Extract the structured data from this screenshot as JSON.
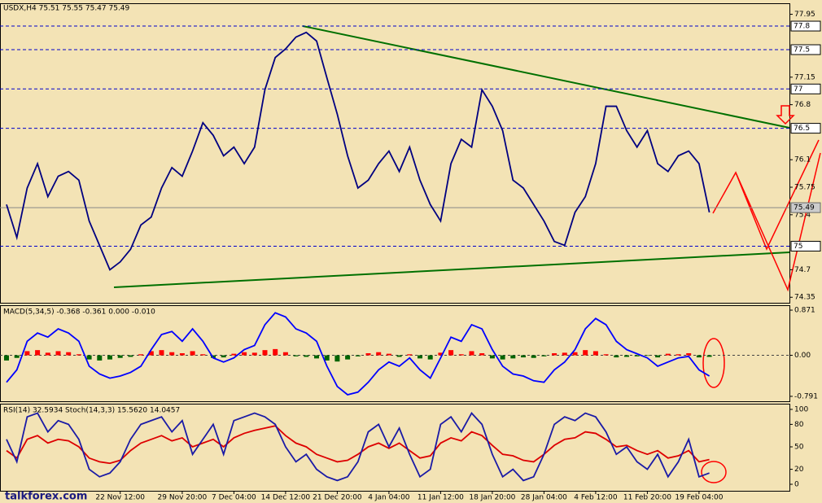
{
  "chart_data": [
    {
      "type": "line",
      "title": "USDX,H4  75.51 75.55 75.47 75.49",
      "lines": [
        {
          "color": "#000080",
          "values": [
            75.53,
            75.11,
            75.74,
            76.05,
            75.63,
            75.89,
            75.95,
            75.84,
            75.32,
            75.01,
            74.7,
            74.8,
            74.96,
            75.27,
            75.37,
            75.74,
            76.0,
            75.89,
            76.21,
            76.57,
            76.41,
            76.15,
            76.26,
            76.05,
            76.26,
            76.99,
            77.4,
            77.51,
            77.66,
            77.72,
            77.61,
            77.14,
            76.68,
            76.15,
            75.74,
            75.84,
            76.05,
            76.21,
            75.95,
            76.26,
            75.84,
            75.53,
            75.32,
            76.05,
            76.36,
            76.26,
            76.99,
            76.78,
            76.47,
            75.84,
            75.74,
            75.53,
            75.32,
            75.06,
            75.01,
            75.43,
            75.63,
            76.05,
            76.78,
            76.78,
            76.47,
            76.26,
            76.47,
            76.05,
            75.95,
            76.15,
            76.21,
            76.05,
            75.43
          ]
        }
      ],
      "ylim": [
        74.28,
        78.08
      ],
      "yticks": [
        77.95,
        77.15,
        76.8,
        76.1,
        75.75,
        75.4,
        74.7,
        74.35
      ],
      "levels": [
        77.8,
        77.5,
        77.0,
        76.5,
        75.0
      ],
      "level_color": "#0000cc",
      "last": 75.49
    },
    {
      "type": "bar",
      "title": "MACD(5,34,5) -0.368 -0.361 0.000 -0.010",
      "values": [
        -0.1,
        -0.05,
        0.08,
        0.1,
        0.05,
        0.08,
        0.06,
        0.02,
        -0.08,
        -0.1,
        -0.08,
        -0.05,
        -0.03,
        0.02,
        0.08,
        0.1,
        0.06,
        0.04,
        0.08,
        0.02,
        -0.05,
        -0.04,
        0.03,
        0.06,
        0.05,
        0.1,
        0.12,
        0.06,
        -0.02,
        -0.03,
        -0.06,
        -0.1,
        -0.12,
        -0.08,
        -0.02,
        0.04,
        0.06,
        0.03,
        -0.03,
        0.02,
        -0.06,
        -0.08,
        0.05,
        0.1,
        0.02,
        0.08,
        0.04,
        -0.06,
        -0.08,
        -0.06,
        -0.04,
        -0.05,
        -0.02,
        0.04,
        0.05,
        0.06,
        0.1,
        0.08,
        0.02,
        -0.04,
        -0.03,
        -0.02,
        -0.01,
        -0.04,
        0.03,
        0.02,
        0.04,
        -0.04,
        -0.03
      ],
      "up_color": "#ff0000",
      "down_color": "#006400",
      "lines": [
        {
          "color": "#0000ff",
          "values": [
            -0.52,
            -0.28,
            0.27,
            0.43,
            0.35,
            0.51,
            0.43,
            0.27,
            -0.21,
            -0.36,
            -0.44,
            -0.4,
            -0.33,
            -0.21,
            0.11,
            0.4,
            0.46,
            0.27,
            0.51,
            0.27,
            -0.05,
            -0.13,
            -0.05,
            0.11,
            0.19,
            0.59,
            0.82,
            0.74,
            0.51,
            0.43,
            0.27,
            -0.21,
            -0.6,
            -0.76,
            -0.71,
            -0.52,
            -0.28,
            -0.13,
            -0.21,
            -0.05,
            -0.28,
            -0.44,
            -0.05,
            0.35,
            0.27,
            0.59,
            0.51,
            0.11,
            -0.21,
            -0.36,
            -0.4,
            -0.49,
            -0.52,
            -0.28,
            -0.13,
            0.11,
            0.51,
            0.71,
            0.59,
            0.27,
            0.11,
            0.03,
            -0.05,
            -0.21,
            -0.13,
            -0.05,
            -0.02,
            -0.28,
            -0.4
          ]
        }
      ],
      "ylim": [
        -0.886,
        0.95
      ],
      "yticks": [
        0.871,
        {
          "value": 0,
          "label": "0.00"
        },
        -0.791
      ]
    },
    {
      "type": "line",
      "title": "RSI(14) 32.5934 Stoch(14,3,3) 15.5620 14.0457",
      "lines": [
        {
          "color": "#dd0000",
          "values": [
            45,
            35,
            60,
            65,
            55,
            60,
            58,
            50,
            35,
            30,
            28,
            32,
            45,
            55,
            60,
            65,
            58,
            62,
            50,
            55,
            60,
            50,
            62,
            68,
            72,
            75,
            78,
            65,
            55,
            50,
            40,
            35,
            30,
            32,
            40,
            50,
            55,
            48,
            55,
            45,
            35,
            38,
            55,
            62,
            58,
            70,
            65,
            52,
            40,
            38,
            32,
            30,
            40,
            52,
            60,
            62,
            70,
            68,
            60,
            50,
            52,
            45,
            40,
            45,
            35,
            38,
            45,
            30,
            33
          ]
        },
        {
          "color": "#1a1aa6",
          "values": [
            60,
            30,
            90,
            95,
            70,
            85,
            80,
            60,
            20,
            10,
            15,
            30,
            60,
            80,
            85,
            90,
            70,
            85,
            40,
            60,
            80,
            40,
            85,
            90,
            95,
            90,
            80,
            50,
            30,
            40,
            20,
            10,
            5,
            10,
            30,
            70,
            80,
            50,
            75,
            40,
            10,
            20,
            80,
            90,
            70,
            95,
            80,
            40,
            10,
            20,
            5,
            10,
            40,
            80,
            90,
            85,
            95,
            90,
            70,
            40,
            50,
            30,
            20,
            40,
            10,
            30,
            60,
            10,
            15
          ]
        }
      ],
      "ylim": [
        -8.7,
        106.5
      ],
      "yticks": [
        100,
        80,
        50,
        20,
        0
      ],
      "categories": [
        null,
        null,
        null,
        null,
        null,
        null,
        null,
        null,
        null,
        null,
        null,
        "22 Nov 12:00",
        null,
        null,
        null,
        null,
        null,
        "29 Nov 20:00",
        null,
        null,
        null,
        null,
        "7 Dec 04:00",
        null,
        null,
        null,
        null,
        "14 Dec 12:00",
        null,
        null,
        null,
        null,
        "21 Dec 20:00",
        null,
        null,
        null,
        null,
        "4 Jan 04:00",
        null,
        null,
        null,
        null,
        "11 Jan 12:00",
        null,
        null,
        null,
        null,
        "18 Jan 20:00",
        null,
        null,
        null,
        null,
        "28 Jan 04:00",
        null,
        null,
        null,
        null,
        "4 Feb 12:00",
        null,
        null,
        null,
        null,
        "11 Feb 20:00",
        null,
        null,
        null,
        null,
        "19 Feb 04:00",
        null
      ]
    }
  ],
  "watermark": "talkforex.com"
}
